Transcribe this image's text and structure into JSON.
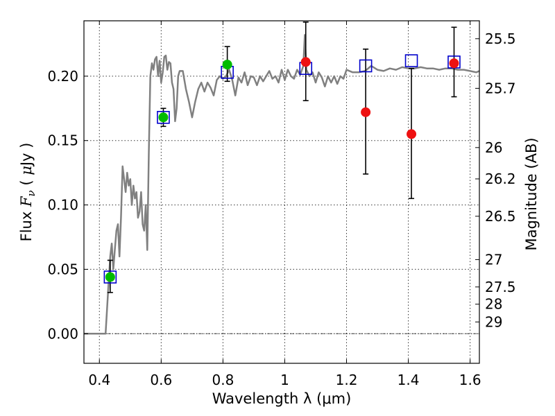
{
  "chart_data": {
    "type": "scatter",
    "title": "",
    "xlabel": "Wavelength  λ (μm)",
    "ylabel_left": [
      "Flux ",
      "F",
      "ν",
      " ( ",
      "μ",
      "Jy )"
    ],
    "ylabel_right": "Magnitude (AB)",
    "xlim": [
      0.35,
      1.63
    ],
    "ylim": [
      -0.023,
      0.243
    ],
    "grid": true,
    "x_ticks": [
      0.4,
      0.6,
      0.8,
      1.0,
      1.2,
      1.4,
      1.6
    ],
    "x_tick_labels": [
      "0.4",
      "0.6",
      "0.8",
      "1",
      "1.2",
      "1.4",
      "1.6"
    ],
    "y_ticks": [
      0.0,
      0.05,
      0.1,
      0.15,
      0.2
    ],
    "y_tick_labels": [
      "0.00",
      "0.05",
      "0.10",
      "0.15",
      "0.20"
    ],
    "mag_ticks": [
      25.5,
      25.7,
      26,
      26.2,
      26.5,
      27,
      27.5,
      28,
      29
    ],
    "mag_tick_labels": [
      "25.5",
      "25.7",
      "26",
      "26.2",
      "26.5",
      "27",
      "27.5",
      "28",
      "29"
    ],
    "mag_zero_flux": 3631000000,
    "colors": {
      "model": "#808080",
      "green": "#00bb00",
      "red": "#ee1111",
      "square": "#0000cc",
      "errorbar": "#000000"
    },
    "model_spectrum": {
      "x": [
        0.35,
        0.4,
        0.41,
        0.42,
        0.425,
        0.43,
        0.435,
        0.44,
        0.445,
        0.45,
        0.455,
        0.46,
        0.465,
        0.47,
        0.475,
        0.48,
        0.485,
        0.49,
        0.495,
        0.5,
        0.505,
        0.51,
        0.515,
        0.52,
        0.525,
        0.53,
        0.535,
        0.54,
        0.545,
        0.55,
        0.555,
        0.56,
        0.565,
        0.57,
        0.575,
        0.58,
        0.585,
        0.59,
        0.595,
        0.6,
        0.605,
        0.61,
        0.615,
        0.62,
        0.625,
        0.63,
        0.635,
        0.64,
        0.645,
        0.65,
        0.655,
        0.66,
        0.67,
        0.68,
        0.69,
        0.7,
        0.71,
        0.72,
        0.73,
        0.74,
        0.75,
        0.76,
        0.77,
        0.78,
        0.79,
        0.8,
        0.81,
        0.82,
        0.83,
        0.84,
        0.85,
        0.86,
        0.87,
        0.88,
        0.89,
        0.9,
        0.91,
        0.92,
        0.93,
        0.94,
        0.95,
        0.96,
        0.97,
        0.98,
        0.99,
        1.0,
        1.01,
        1.02,
        1.03,
        1.04,
        1.05,
        1.06,
        1.065,
        1.07,
        1.08,
        1.09,
        1.1,
        1.11,
        1.12,
        1.13,
        1.14,
        1.15,
        1.16,
        1.17,
        1.18,
        1.19,
        1.2,
        1.22,
        1.24,
        1.26,
        1.28,
        1.3,
        1.32,
        1.34,
        1.36,
        1.38,
        1.4,
        1.42,
        1.44,
        1.46,
        1.48,
        1.5,
        1.52,
        1.54,
        1.56,
        1.58,
        1.6,
        1.62,
        1.63
      ],
      "y": [
        0.0,
        0.0,
        0.0,
        0.0,
        0.02,
        0.04,
        0.06,
        0.07,
        0.05,
        0.065,
        0.08,
        0.085,
        0.06,
        0.09,
        0.13,
        0.12,
        0.11,
        0.125,
        0.115,
        0.12,
        0.1,
        0.115,
        0.105,
        0.11,
        0.09,
        0.095,
        0.11,
        0.085,
        0.08,
        0.1,
        0.065,
        0.14,
        0.2,
        0.21,
        0.205,
        0.213,
        0.215,
        0.2,
        0.212,
        0.195,
        0.203,
        0.215,
        0.216,
        0.205,
        0.211,
        0.21,
        0.195,
        0.19,
        0.165,
        0.175,
        0.2,
        0.204,
        0.204,
        0.19,
        0.18,
        0.168,
        0.18,
        0.19,
        0.195,
        0.188,
        0.195,
        0.191,
        0.185,
        0.197,
        0.2,
        0.198,
        0.2,
        0.205,
        0.197,
        0.185,
        0.199,
        0.195,
        0.203,
        0.193,
        0.2,
        0.199,
        0.193,
        0.2,
        0.196,
        0.2,
        0.204,
        0.198,
        0.2,
        0.195,
        0.205,
        0.197,
        0.205,
        0.2,
        0.198,
        0.205,
        0.201,
        0.208,
        0.232,
        0.205,
        0.2,
        0.203,
        0.195,
        0.203,
        0.199,
        0.192,
        0.2,
        0.195,
        0.2,
        0.194,
        0.2,
        0.198,
        0.205,
        0.203,
        0.203,
        0.204,
        0.208,
        0.205,
        0.204,
        0.206,
        0.205,
        0.207,
        0.206,
        0.206,
        0.207,
        0.206,
        0.206,
        0.205,
        0.206,
        0.206,
        0.205,
        0.205,
        0.204,
        0.203,
        0.204
      ]
    },
    "squares": [
      {
        "x": 0.435,
        "y": 0.044
      },
      {
        "x": 0.607,
        "y": 0.168
      },
      {
        "x": 0.814,
        "y": 0.203
      },
      {
        "x": 1.068,
        "y": 0.206
      },
      {
        "x": 1.262,
        "y": 0.208
      },
      {
        "x": 1.41,
        "y": 0.212
      },
      {
        "x": 1.548,
        "y": 0.211
      }
    ],
    "green_points": [
      {
        "x": 0.435,
        "y": 0.044,
        "err_lo": 0.032,
        "err_hi": 0.057
      },
      {
        "x": 0.607,
        "y": 0.168,
        "err_lo": 0.161,
        "err_hi": 0.175
      },
      {
        "x": 0.814,
        "y": 0.209,
        "err_lo": 0.196,
        "err_hi": 0.223
      }
    ],
    "red_points": [
      {
        "x": 1.068,
        "y": 0.211,
        "err_lo": 0.181,
        "err_hi": 0.242
      },
      {
        "x": 1.262,
        "y": 0.172,
        "err_lo": 0.124,
        "err_hi": 0.221
      },
      {
        "x": 1.41,
        "y": 0.155,
        "err_lo": 0.105,
        "err_hi": 0.206
      },
      {
        "x": 1.548,
        "y": 0.21,
        "err_lo": 0.184,
        "err_hi": 0.238
      }
    ]
  }
}
